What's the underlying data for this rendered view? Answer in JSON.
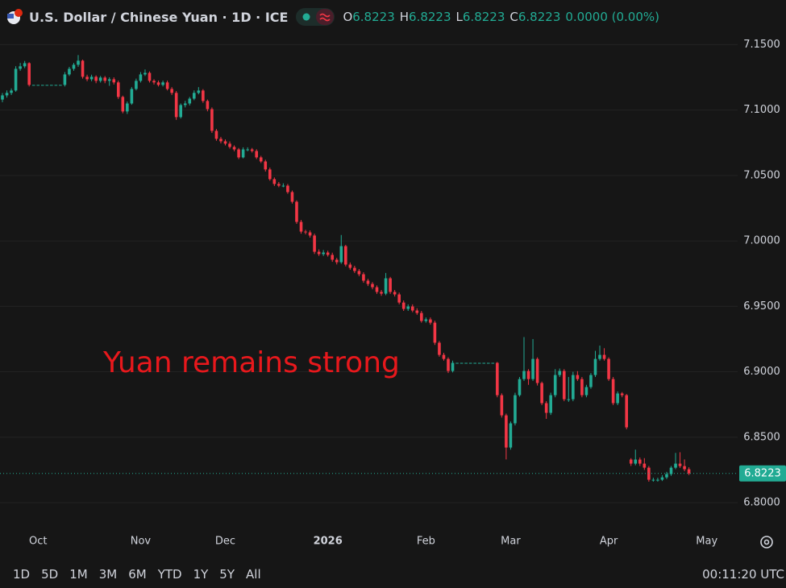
{
  "chart_data": {
    "type": "candlestick",
    "title": "U.S. Dollar / Chinese Yuan · 1D · ICE",
    "quote": [
      {
        "label": "O",
        "value": "6.8223"
      },
      {
        "label": "H",
        "value": "6.8223"
      },
      {
        "label": "L",
        "value": "6.8223"
      },
      {
        "label": "C",
        "value": "6.8223"
      }
    ],
    "change": "0.0000 (0.00%)",
    "annotation": "Yuan remains strong",
    "annotation_color": "#e8181c",
    "up_color": "#22ab94",
    "down_color": "#f23645",
    "grid": true,
    "ylim": [
      6.784,
      7.181
    ],
    "yticks": [
      {
        "value": 6.8,
        "label": "6.8000"
      },
      {
        "value": 6.85,
        "label": "6.8500"
      },
      {
        "value": 6.9,
        "label": "6.9000"
      },
      {
        "value": 6.95,
        "label": "6.9500"
      },
      {
        "value": 7.0,
        "label": "7.0000"
      },
      {
        "value": 7.05,
        "label": "7.0500"
      },
      {
        "value": 7.1,
        "label": "7.1000"
      },
      {
        "value": 7.15,
        "label": "7.1500"
      }
    ],
    "last_price": 6.8223,
    "categories": [
      null,
      null,
      null,
      null,
      null,
      null,
      null,
      null,
      "Oct",
      null,
      null,
      null,
      null,
      null,
      null,
      null,
      null,
      null,
      null,
      null,
      null,
      null,
      null,
      null,
      null,
      null,
      null,
      null,
      null,
      null,
      null,
      "Nov",
      null,
      null,
      null,
      null,
      null,
      null,
      null,
      null,
      null,
      null,
      null,
      null,
      null,
      null,
      null,
      null,
      null,
      null,
      "Dec",
      null,
      null,
      null,
      null,
      null,
      null,
      null,
      null,
      null,
      null,
      null,
      null,
      null,
      null,
      null,
      null,
      null,
      null,
      null,
      null,
      null,
      null,
      "2026",
      null,
      null,
      null,
      null,
      null,
      null,
      null,
      null,
      null,
      null,
      null,
      null,
      null,
      null,
      null,
      null,
      null,
      null,
      null,
      null,
      null,
      "Feb",
      null,
      null,
      null,
      null,
      null,
      null,
      null,
      null,
      null,
      null,
      null,
      null,
      null,
      null,
      null,
      null,
      null,
      null,
      "Mar",
      null,
      null,
      null,
      null,
      null,
      null,
      null,
      null,
      null,
      null,
      null,
      null,
      null,
      null,
      null,
      null,
      null,
      null,
      null,
      null,
      null,
      "Apr",
      null,
      null,
      null,
      null,
      null,
      null,
      null,
      null,
      null,
      null,
      null,
      null,
      null,
      null,
      null,
      null,
      null,
      null,
      null,
      null,
      null,
      "May"
    ],
    "open": [
      7.108,
      7.1112,
      7.1131,
      7.1149,
      7.1315,
      7.1334,
      7.1358,
      7.1192,
      7.1192,
      7.1192,
      7.1192,
      7.1192,
      7.1192,
      7.1192,
      7.1192,
      7.1272,
      7.1315,
      7.1346,
      7.1377,
      7.1254,
      7.1235,
      7.1254,
      7.1223,
      7.1248,
      7.1223,
      7.1235,
      7.1211,
      7.11,
      7.0989,
      7.105,
      7.1161,
      7.1223,
      7.1272,
      7.1284,
      7.1223,
      7.1211,
      7.1192,
      7.1211,
      7.1161,
      7.1131,
      7.0946,
      7.1038,
      7.105,
      7.1087,
      7.1131,
      7.1149,
      7.1069,
      7.1007,
      7.0841,
      7.078,
      7.0761,
      7.0743,
      7.0718,
      7.0699,
      7.0638,
      7.0699,
      7.0699,
      7.0687,
      7.0638,
      7.0607,
      7.0546,
      7.0472,
      7.0435,
      7.0422,
      7.0422,
      7.0373,
      7.0299,
      7.0145,
      7.0071,
      7.0065,
      7.0041,
      6.9917,
      6.9899,
      6.9911,
      6.9893,
      6.9856,
      6.9837,
      6.996,
      6.9819,
      6.9794,
      6.977,
      6.9745,
      6.9696,
      6.9671,
      6.9646,
      6.961,
      6.9597,
      6.9714,
      6.961,
      6.9591,
      6.9529,
      6.948,
      6.9499,
      6.9468,
      6.9449,
      6.9388,
      6.94,
      6.9375,
      6.9222,
      6.9129,
      6.9098,
      6.9006,
      6.9068,
      6.9068,
      6.9068,
      6.9068,
      6.9068,
      6.9068,
      6.9068,
      6.9068,
      6.9068,
      6.9068,
      6.8821,
      6.8667,
      6.8421,
      6.8606,
      6.8821,
      6.8944,
      6.9006,
      6.8944,
      6.9098,
      6.8914,
      6.876,
      6.8686,
      6.8821,
      6.8975,
      6.9006,
      6.879,
      6.879,
      6.8975,
      6.8944,
      6.8821,
      6.8883,
      6.8975,
      6.9098,
      6.9129,
      6.9098,
      6.8944,
      6.876,
      6.8834,
      6.8821,
      6.8329,
      6.8298,
      6.8329,
      6.8298,
      6.8267,
      6.8175,
      6.8175,
      6.8175,
      6.8193,
      6.8218,
      6.8267,
      6.8298,
      6.8279,
      6.8255,
      null,
      null,
      null,
      null
    ],
    "high": [
      7.113,
      7.115,
      7.1165,
      7.1335,
      7.136,
      7.1375,
      7.1365,
      7.1192,
      7.1192,
      7.1192,
      7.1192,
      7.1192,
      7.1192,
      7.1192,
      7.129,
      7.133,
      7.136,
      7.142,
      7.1385,
      7.127,
      7.127,
      7.1265,
      7.126,
      7.126,
      7.125,
      7.125,
      7.1225,
      7.111,
      7.1065,
      7.1175,
      7.124,
      7.129,
      7.131,
      7.1295,
      7.1235,
      7.1225,
      7.1225,
      7.1225,
      7.1175,
      7.1145,
      7.105,
      7.107,
      7.11,
      7.115,
      7.1175,
      7.116,
      7.108,
      7.102,
      7.0855,
      7.0795,
      7.0775,
      7.076,
      7.073,
      7.071,
      7.0715,
      7.0715,
      7.071,
      7.07,
      7.065,
      7.062,
      7.056,
      7.0485,
      7.045,
      7.044,
      7.0435,
      7.0385,
      7.031,
      7.016,
      7.0085,
      7.008,
      7.0055,
      6.9935,
      6.993,
      6.9925,
      6.991,
      6.987,
      7.0045,
      6.997,
      6.9835,
      6.981,
      6.9785,
      6.976,
      6.971,
      6.9685,
      6.966,
      6.9625,
      6.9755,
      6.9725,
      6.9625,
      6.9605,
      6.9545,
      6.9515,
      6.9515,
      6.9485,
      6.9465,
      6.9415,
      6.9415,
      6.939,
      6.9235,
      6.9145,
      6.911,
      6.9085,
      6.9068,
      6.9068,
      6.9068,
      6.9068,
      6.9068,
      6.9068,
      6.9068,
      6.9068,
      6.9068,
      6.9075,
      6.8835,
      6.868,
      6.862,
      6.884,
      6.896,
      6.9265,
      6.902,
      6.925,
      6.911,
      6.8925,
      6.8775,
      6.884,
      6.902,
      6.9025,
      6.902,
      6.896,
      6.9,
      6.9005,
      6.896,
      6.89,
      6.899,
      6.916,
      6.92,
      6.918,
      6.911,
      6.896,
      6.885,
      6.8845,
      6.883,
      6.834,
      6.8405,
      6.8345,
      6.834,
      6.828,
      6.819,
      6.819,
      6.821,
      6.8235,
      6.828,
      6.838,
      6.8385,
      6.833,
      6.827,
      null,
      null,
      null,
      null
    ],
    "low": [
      7.106,
      7.1095,
      7.1115,
      7.114,
      7.13,
      7.132,
      7.118,
      7.1192,
      7.1192,
      7.1192,
      7.1192,
      7.1192,
      7.1192,
      7.1192,
      7.118,
      7.126,
      7.13,
      7.133,
      7.124,
      7.122,
      7.122,
      7.1205,
      7.121,
      7.1205,
      7.1185,
      7.1195,
      7.1085,
      7.0975,
      7.097,
      7.104,
      7.115,
      7.121,
      7.126,
      7.121,
      7.1195,
      7.118,
      7.118,
      7.115,
      7.1115,
      7.0925,
      7.0935,
      7.102,
      7.1035,
      7.1075,
      7.112,
      7.1055,
      7.099,
      7.0825,
      7.0765,
      7.0745,
      7.073,
      7.0705,
      7.0685,
      7.0625,
      7.063,
      7.0685,
      7.0675,
      7.0625,
      7.0595,
      7.053,
      7.046,
      7.042,
      7.041,
      7.041,
      7.036,
      7.0285,
      7.013,
      7.0055,
      7.005,
      7.0025,
      6.99,
      6.9885,
      6.9885,
      6.988,
      6.984,
      6.982,
      6.9825,
      6.9805,
      6.978,
      6.9755,
      6.973,
      6.968,
      6.9655,
      6.963,
      6.9595,
      6.958,
      6.9585,
      6.9595,
      6.9575,
      6.9515,
      6.9465,
      6.9465,
      6.9455,
      6.9435,
      6.9375,
      6.9375,
      6.936,
      6.9205,
      6.9115,
      6.9085,
      6.899,
      6.8995,
      6.9068,
      6.9068,
      6.9068,
      6.9068,
      6.9068,
      6.9068,
      6.9068,
      6.9068,
      6.9068,
      6.8805,
      6.865,
      6.833,
      6.8405,
      6.859,
      6.881,
      6.893,
      6.89,
      6.893,
      6.8895,
      6.8745,
      6.864,
      6.867,
      6.8805,
      6.896,
      6.8775,
      6.877,
      6.8775,
      6.893,
      6.8805,
      6.8805,
      6.887,
      6.896,
      6.9085,
      6.9085,
      6.893,
      6.8745,
      6.8745,
      6.8805,
      6.856,
      6.828,
      6.8285,
      6.828,
      6.825,
      6.816,
      6.816,
      6.816,
      6.8165,
      6.818,
      6.8205,
      6.8255,
      6.8265,
      6.824,
      6.821,
      null,
      null,
      null,
      null
    ],
    "close": [
      7.1112,
      7.1131,
      7.1149,
      7.1315,
      7.1334,
      7.1358,
      7.1192,
      7.1192,
      7.1192,
      7.1192,
      7.1192,
      7.1192,
      7.1192,
      7.1192,
      7.1272,
      7.1315,
      7.1346,
      7.1377,
      7.1254,
      7.1235,
      7.1254,
      7.1223,
      7.1248,
      7.1223,
      7.1235,
      7.1211,
      7.11,
      7.0989,
      7.105,
      7.1161,
      7.1223,
      7.1272,
      7.1284,
      7.1223,
      7.1211,
      7.1192,
      7.1211,
      7.1161,
      7.1131,
      7.0946,
      7.1038,
      7.105,
      7.1087,
      7.1131,
      7.1149,
      7.1069,
      7.1007,
      7.0841,
      7.078,
      7.0761,
      7.0743,
      7.0718,
      7.0699,
      7.0638,
      7.0699,
      7.0699,
      7.0687,
      7.0638,
      7.0607,
      7.0546,
      7.0472,
      7.0435,
      7.0422,
      7.0422,
      7.0373,
      7.0299,
      7.0145,
      7.0071,
      7.0065,
      7.0041,
      6.9917,
      6.9899,
      6.9911,
      6.9893,
      6.9856,
      6.9837,
      6.996,
      6.9819,
      6.9794,
      6.977,
      6.9745,
      6.9696,
      6.9671,
      6.9646,
      6.961,
      6.9597,
      6.9714,
      6.961,
      6.9591,
      6.9529,
      6.948,
      6.9499,
      6.9468,
      6.9449,
      6.9388,
      6.94,
      6.9375,
      6.9222,
      6.9129,
      6.9098,
      6.9006,
      6.9068,
      6.9068,
      6.9068,
      6.9068,
      6.9068,
      6.9068,
      6.9068,
      6.9068,
      6.9068,
      6.9068,
      6.8821,
      6.8667,
      6.8421,
      6.8606,
      6.8821,
      6.8944,
      6.9006,
      6.8944,
      6.9098,
      6.8914,
      6.876,
      6.8686,
      6.8821,
      6.8975,
      6.9006,
      6.879,
      6.879,
      6.8975,
      6.8944,
      6.8821,
      6.8883,
      6.8975,
      6.9098,
      6.9129,
      6.9098,
      6.8944,
      6.876,
      6.8834,
      6.8821,
      6.8575,
      6.8298,
      6.8329,
      6.8298,
      6.8267,
      6.8175,
      6.8175,
      6.8175,
      6.8193,
      6.8218,
      6.8267,
      6.8298,
      6.8279,
      6.8255,
      6.8223,
      null,
      null,
      null,
      null
    ]
  },
  "toolbar": {
    "ranges": [
      "1D",
      "5D",
      "1M",
      "3M",
      "6M",
      "YTD",
      "1Y",
      "5Y",
      "All"
    ],
    "clock": "00:11:20 UTC"
  }
}
